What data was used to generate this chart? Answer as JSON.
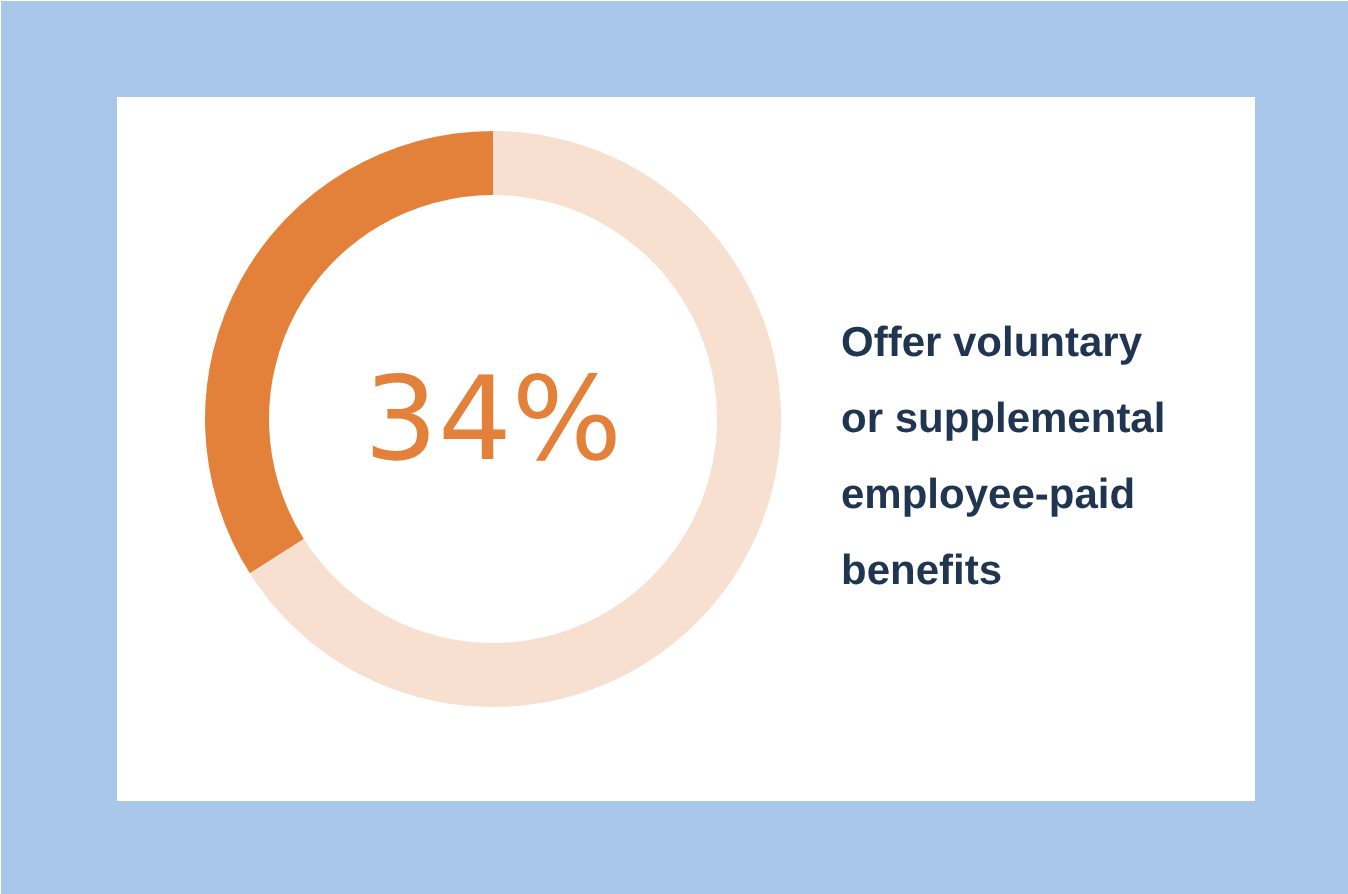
{
  "chart_data": {
    "type": "donut",
    "title": "Offer voluntary or supplemental employee-paid benefits",
    "categories": [
      null,
      null
    ],
    "values": [
      34,
      66
    ],
    "colors": [
      "#e3803a",
      "#f7e0d0"
    ],
    "value_labels": [
      "34%",
      null
    ]
  }
}
